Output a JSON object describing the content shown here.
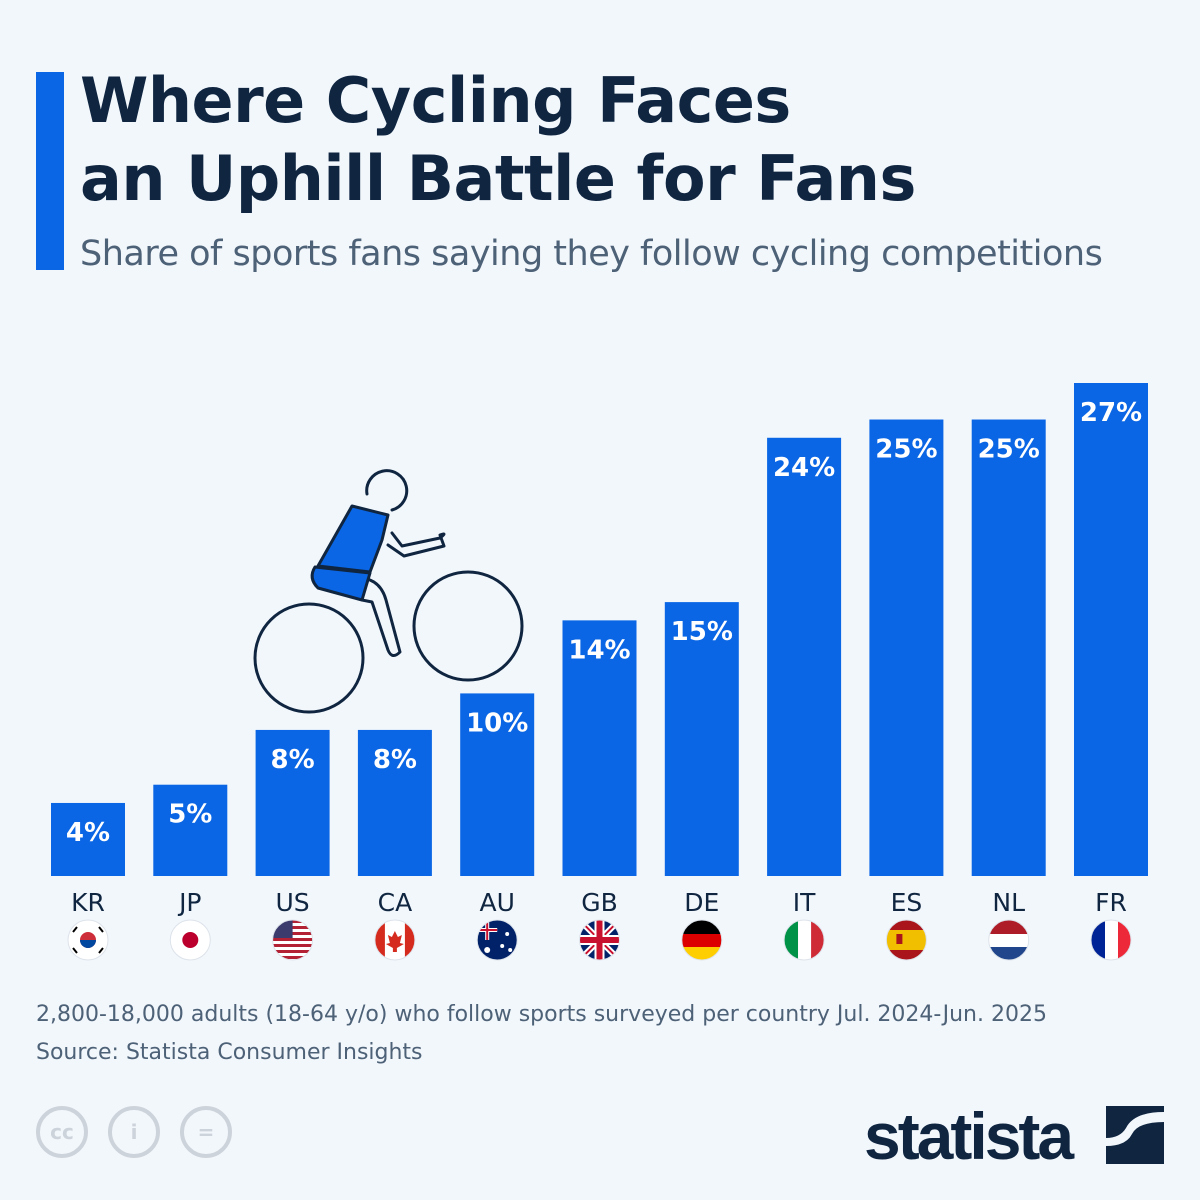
{
  "header": {
    "title_line1": "Where Cycling Faces",
    "title_line2": "an Uphill Battle for Fans",
    "subtitle": "Share of sports fans saying they follow cycling competitions"
  },
  "chart_data": {
    "type": "bar",
    "title": "Where Cycling Faces an Uphill Battle for Fans",
    "subtitle": "Share of sports fans saying they follow cycling competitions",
    "categories": [
      "KR",
      "JP",
      "US",
      "CA",
      "AU",
      "GB",
      "DE",
      "IT",
      "ES",
      "NL",
      "FR"
    ],
    "values": [
      4,
      5,
      8,
      8,
      10,
      14,
      15,
      24,
      25,
      25,
      27
    ],
    "unit": "%",
    "ylim": [
      0,
      27
    ],
    "grid": false,
    "bar_color": "#0a66e4"
  },
  "footer": {
    "note": "2,800-18,000 adults (18-64 y/o) who follow sports surveyed per country Jul. 2024-Jun. 2025",
    "source": "Source: Statista Consumer Insights",
    "brand": "statista"
  },
  "colors": {
    "background": "#f2f7fc",
    "accent": "#0a66e4",
    "text": "#0f2540"
  }
}
